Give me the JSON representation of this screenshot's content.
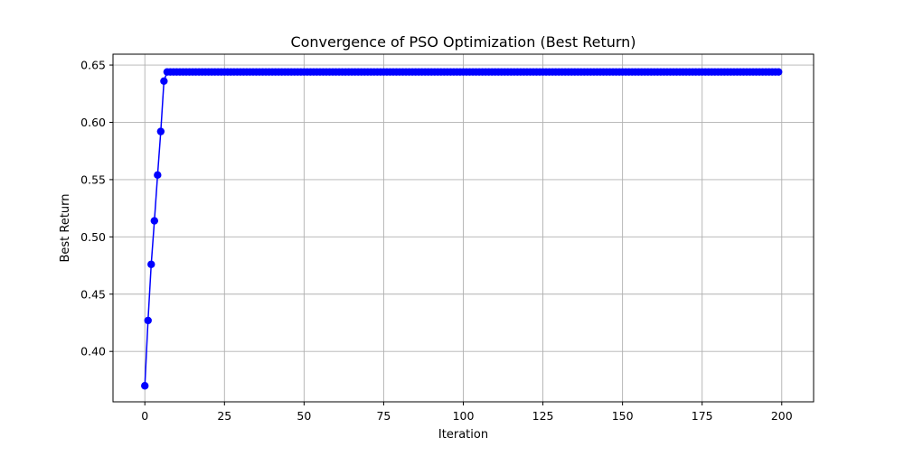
{
  "chart_data": {
    "type": "line",
    "title": "Convergence of PSO Optimization (Best Return)",
    "xlabel": "Iteration",
    "ylabel": "Best Return",
    "xlim": [
      -10,
      210
    ],
    "ylim": [
      0.356,
      0.6595
    ],
    "xticks": [
      0,
      25,
      50,
      75,
      100,
      125,
      150,
      175,
      200
    ],
    "yticks": [
      0.4,
      0.45,
      0.5,
      0.55,
      0.6,
      0.65
    ],
    "ytick_labels": [
      "0.40",
      "0.45",
      "0.50",
      "0.55",
      "0.60",
      "0.65"
    ],
    "grid": true,
    "color": "#0000ff",
    "marker": "circle",
    "series": [
      {
        "x_start": 0,
        "x_end": 199,
        "initial_values": [
          0.37,
          0.427,
          0.476,
          0.514,
          0.554,
          0.592,
          0.636
        ],
        "plateau_value": 0.644
      }
    ]
  }
}
